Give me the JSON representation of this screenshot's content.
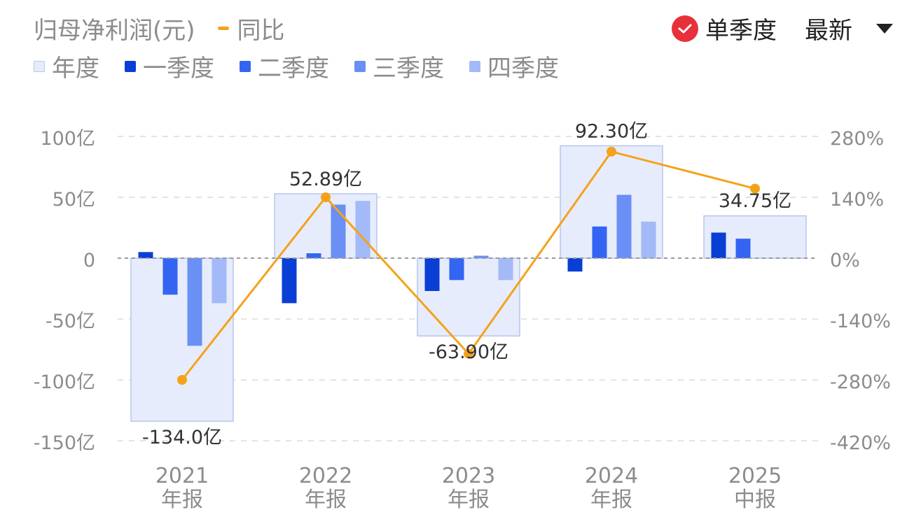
{
  "header": {
    "title": "归母净利润(元)",
    "yoy_label": "同比",
    "single_quarter_label": "单季度",
    "sort_label": "最新"
  },
  "legend": [
    {
      "name": "年度",
      "color": "#e6ecfb",
      "border": "#b7c5ee"
    },
    {
      "name": "一季度",
      "color": "#0a3fd6"
    },
    {
      "name": "二季度",
      "color": "#3365f2"
    },
    {
      "name": "三季度",
      "color": "#6a8ff5"
    },
    {
      "name": "四季度",
      "color": "#a3b9f8"
    }
  ],
  "colors": {
    "yoy_line": "#f5a21b",
    "grid": "#e3e3e3",
    "zero_line": "#9a9a9a",
    "axis_text": "#8c8c8c",
    "label_text": "#333333"
  },
  "chart_data": {
    "type": "bar",
    "categories": [
      [
        "2021",
        "年报"
      ],
      [
        "2022",
        "年报"
      ],
      [
        "2023",
        "年报"
      ],
      [
        "2024",
        "年报"
      ],
      [
        "2025",
        "中报"
      ]
    ],
    "y_left": {
      "ticks": [
        100,
        50,
        0,
        -50,
        -100,
        -150
      ],
      "tick_labels": [
        "100亿",
        "50亿",
        "0",
        "-50亿",
        "-100亿",
        "-150亿"
      ],
      "range": [
        -150,
        100
      ],
      "unit": "亿"
    },
    "y_right": {
      "ticks": [
        280,
        140,
        0,
        -140,
        -280,
        -420
      ],
      "tick_labels": [
        "280%",
        "140%",
        "0%",
        "-140%",
        "-280%",
        "-420%"
      ],
      "range": [
        -420,
        280
      ],
      "unit": "%"
    },
    "annual": {
      "values": [
        -134.0,
        52.89,
        -63.9,
        92.3,
        34.75
      ],
      "labels": [
        "-134.0亿",
        "52.89亿",
        "-63.90亿",
        "92.30亿",
        "34.75亿"
      ]
    },
    "quarters": [
      {
        "name": "一季度",
        "values": [
          5,
          -37,
          -27,
          -11,
          21
        ]
      },
      {
        "name": "二季度",
        "values": [
          -30,
          4,
          -18,
          26,
          16
        ]
      },
      {
        "name": "三季度",
        "values": [
          -72,
          44,
          2,
          52,
          null
        ]
      },
      {
        "name": "四季度",
        "values": [
          -37,
          47,
          -18,
          30,
          null
        ]
      }
    ],
    "yoy": {
      "name": "同比",
      "values": [
        -280,
        140,
        -220,
        245,
        160
      ]
    },
    "grid": true
  }
}
